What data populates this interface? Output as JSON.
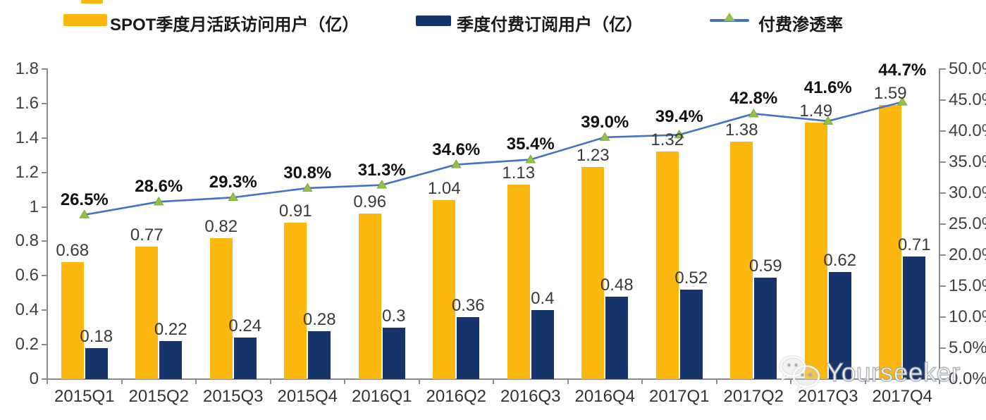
{
  "legend": {
    "mau": {
      "label": "SPOT季度月活跃访问用户（亿）"
    },
    "subs": {
      "label": "季度付费订阅用户（亿）"
    },
    "penetration": {
      "label": "付费渗透率"
    }
  },
  "colors": {
    "mau_bar": "#FCB80E",
    "subs_bar": "#17356B",
    "line": "#4472C4",
    "marker_fill": "#94C047",
    "marker_stroke": "#7FA93C",
    "axis": "#8C8C8C"
  },
  "chart_data": {
    "type": "combo-bar-line",
    "categories": [
      "2015Q1",
      "2015Q2",
      "2015Q3",
      "2015Q4",
      "2016Q1",
      "2016Q2",
      "2016Q3",
      "2016Q4",
      "2017Q1",
      "2017Q2",
      "2017Q3",
      "2017Q4"
    ],
    "series": [
      {
        "name": "SPOT季度月活跃访问用户（亿）",
        "type": "bar",
        "axis": "left",
        "values": [
          0.68,
          0.77,
          0.82,
          0.91,
          0.96,
          1.04,
          1.13,
          1.23,
          1.32,
          1.38,
          1.49,
          1.59
        ],
        "labels": [
          "0.68",
          "0.77",
          "0.82",
          "0.91",
          "0.96",
          "1.04",
          "1.13",
          "1.23",
          "1.32",
          "1.38",
          "1.49",
          "1.59"
        ]
      },
      {
        "name": "季度付费订阅用户（亿）",
        "type": "bar",
        "axis": "left",
        "values": [
          0.18,
          0.22,
          0.24,
          0.28,
          0.3,
          0.36,
          0.4,
          0.48,
          0.52,
          0.59,
          0.62,
          0.71
        ],
        "labels": [
          "0.18",
          "0.22",
          "0.24",
          "0.28",
          "0.3",
          "0.36",
          "0.4",
          "0.48",
          "0.52",
          "0.59",
          "0.62",
          "0.71"
        ]
      },
      {
        "name": "付费渗透率",
        "type": "line",
        "axis": "right",
        "values": [
          26.5,
          28.6,
          29.3,
          30.8,
          31.3,
          34.6,
          35.4,
          39.0,
          39.4,
          42.8,
          41.6,
          44.7
        ],
        "labels": [
          "26.5%",
          "28.6%",
          "29.3%",
          "30.8%",
          "31.3%",
          "34.6%",
          "35.4%",
          "39.0%",
          "39.4%",
          "42.8%",
          "41.6%",
          "44.7%"
        ]
      }
    ],
    "left_axis": {
      "min": 0,
      "max": 1.8,
      "tick_labels": [
        "0",
        "0.2",
        "0.4",
        "0.6",
        "0.8",
        "1",
        "1.2",
        "1.4",
        "1.6",
        "1.8"
      ]
    },
    "right_axis": {
      "min": 0,
      "max": 50,
      "tick_labels": [
        "0.0%",
        "5.0%",
        "10.0%",
        "15.0%",
        "20.0%",
        "25.0%",
        "30.0%",
        "35.0%",
        "40.0%",
        "45.0%",
        "50.0%"
      ]
    },
    "grid": false,
    "legend_position": "top"
  },
  "watermark": {
    "text": "Yourseeker",
    "icon": "wechat-icon"
  }
}
